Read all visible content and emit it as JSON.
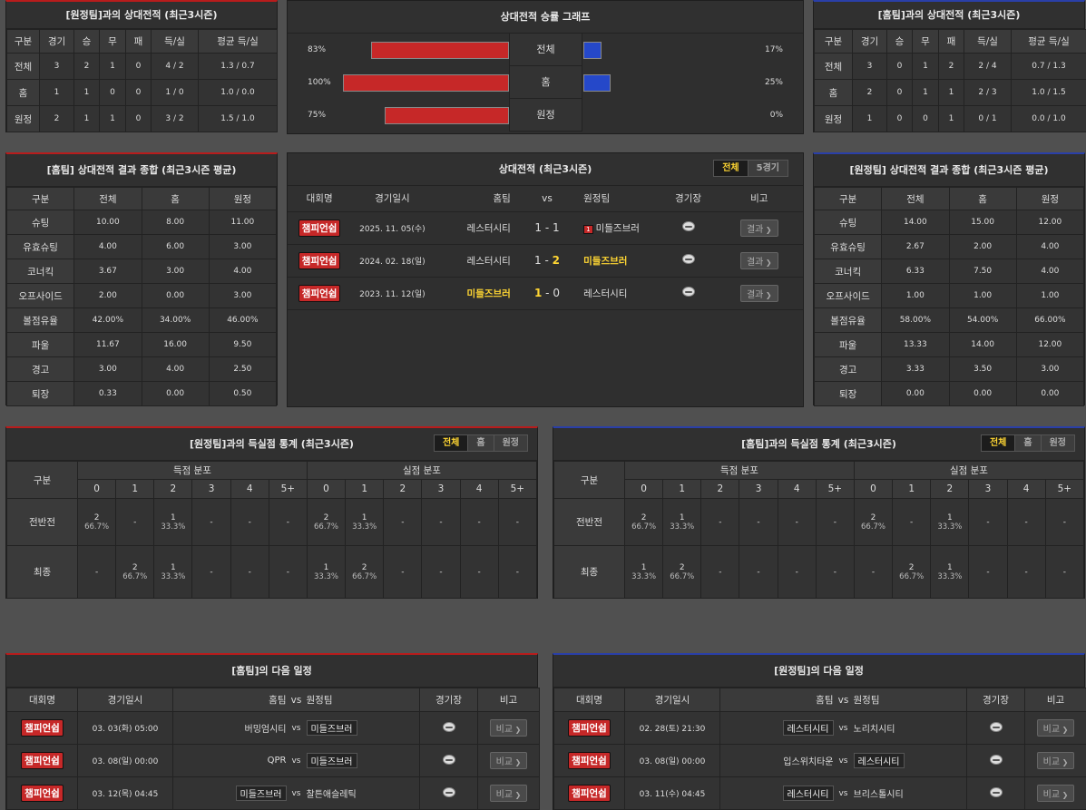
{
  "away_h2h": {
    "title": "[원정팀]과의 상대전적 (최근3시즌)",
    "headers": [
      "구분",
      "경기",
      "승",
      "무",
      "패",
      "득/실",
      "평균 득/실"
    ],
    "rows": [
      [
        "전체",
        "3",
        "2",
        "1",
        "0",
        "4 / 2",
        "1.3 / 0.7"
      ],
      [
        "홈",
        "1",
        "1",
        "0",
        "0",
        "1 / 0",
        "1.0 / 0.0"
      ],
      [
        "원정",
        "2",
        "1",
        "1",
        "0",
        "3 / 2",
        "1.5 / 1.0"
      ]
    ]
  },
  "win_graph": {
    "title": "상대전적 승률 그래프",
    "rows": [
      {
        "label": "전체",
        "left_text": "83%",
        "right_text": "17%",
        "left": 83,
        "right": 17
      },
      {
        "label": "홈",
        "left_text": "100%",
        "right_text": "25%",
        "left": 100,
        "right": 25
      },
      {
        "label": "원정",
        "left_text": "75%",
        "right_text": "0%",
        "left": 75,
        "right": 0
      }
    ]
  },
  "home_h2h": {
    "title": "[홈팀]과의 상대전적 (최근3시즌)",
    "headers": [
      "구분",
      "경기",
      "승",
      "무",
      "패",
      "득/실",
      "평균 득/실"
    ],
    "rows": [
      [
        "전체",
        "3",
        "0",
        "1",
        "2",
        "2 / 4",
        "0.7 / 1.3"
      ],
      [
        "홈",
        "2",
        "0",
        "1",
        "1",
        "2 / 3",
        "1.0 / 1.5"
      ],
      [
        "원정",
        "1",
        "0",
        "0",
        "1",
        "0 / 1",
        "0.0 / 1.0"
      ]
    ]
  },
  "home_summary": {
    "title": "[홈팀] 상대전적 결과 종합 (최근3시즌 평균)",
    "headers": [
      "구분",
      "전체",
      "홈",
      "원정"
    ],
    "rows": [
      [
        "슈팅",
        "10.00",
        "8.00",
        "11.00"
      ],
      [
        "유효슈팅",
        "4.00",
        "6.00",
        "3.00"
      ],
      [
        "코너킥",
        "3.67",
        "3.00",
        "4.00"
      ],
      [
        "오프사이드",
        "2.00",
        "0.00",
        "3.00"
      ],
      [
        "볼점유율",
        "42.00%",
        "34.00%",
        "46.00%"
      ],
      [
        "파울",
        "11.67",
        "16.00",
        "9.50"
      ],
      [
        "경고",
        "3.00",
        "4.00",
        "2.50"
      ],
      [
        "퇴장",
        "0.33",
        "0.00",
        "0.50"
      ]
    ]
  },
  "h2h_matches": {
    "title": "상대전적 (최근3시즌)",
    "tabs": [
      "전체",
      "5경기"
    ],
    "headers": {
      "league": "대회명",
      "date": "경기일시",
      "home": "홈팀",
      "vs": "vs",
      "away": "원정팀",
      "venue": "경기장",
      "note": "비고"
    },
    "rows": [
      {
        "league": "챔피언쉽",
        "date": "2025. 11. 05(수)",
        "home": "레스터시티",
        "hs": "1",
        "as": "1",
        "away": "미들즈브러",
        "card": "1",
        "winner": "none",
        "btn": "결과"
      },
      {
        "league": "챔피언쉽",
        "date": "2024. 02. 18(일)",
        "home": "레스터시티",
        "hs": "1",
        "as": "2",
        "away": "미들즈브러",
        "card": "",
        "winner": "away",
        "btn": "결과"
      },
      {
        "league": "챔피언쉽",
        "date": "2023. 11. 12(일)",
        "home": "미들즈브러",
        "hs": "1",
        "as": "0",
        "away": "레스터시티",
        "card": "",
        "winner": "home",
        "btn": "결과"
      }
    ]
  },
  "away_summary": {
    "title": "[원정팀] 상대전적 결과 종합 (최근3시즌 평균)",
    "headers": [
      "구분",
      "전체",
      "홈",
      "원정"
    ],
    "rows": [
      [
        "슈팅",
        "14.00",
        "15.00",
        "12.00"
      ],
      [
        "유효슈팅",
        "2.67",
        "2.00",
        "4.00"
      ],
      [
        "코너킥",
        "6.33",
        "7.50",
        "4.00"
      ],
      [
        "오프사이드",
        "1.00",
        "1.00",
        "1.00"
      ],
      [
        "볼점유율",
        "58.00%",
        "54.00%",
        "66.00%"
      ],
      [
        "파울",
        "13.33",
        "14.00",
        "12.00"
      ],
      [
        "경고",
        "3.33",
        "3.50",
        "3.00"
      ],
      [
        "퇴장",
        "0.00",
        "0.00",
        "0.00"
      ]
    ]
  },
  "away_goal_stats": {
    "title": "[원정팀]과의 득실점 통계 (최근3시즌)",
    "tabs": [
      "전체",
      "홈",
      "원정"
    ],
    "col_label": "구분",
    "scored_label": "득점 분포",
    "conceded_label": "실점 분포",
    "buckets": [
      "0",
      "1",
      "2",
      "3",
      "4",
      "5+"
    ],
    "rows": [
      {
        "label": "전반전",
        "scored": [
          [
            "2",
            "66.7%"
          ],
          [
            "-",
            ""
          ],
          [
            "1",
            "33.3%"
          ],
          [
            "-",
            ""
          ],
          [
            "-",
            ""
          ],
          [
            "-",
            ""
          ]
        ],
        "conceded": [
          [
            "2",
            "66.7%"
          ],
          [
            "1",
            "33.3%"
          ],
          [
            "-",
            ""
          ],
          [
            "-",
            ""
          ],
          [
            "-",
            ""
          ],
          [
            "-",
            ""
          ]
        ]
      },
      {
        "label": "최종",
        "scored": [
          [
            "-",
            ""
          ],
          [
            "2",
            "66.7%"
          ],
          [
            "1",
            "33.3%"
          ],
          [
            "-",
            ""
          ],
          [
            "-",
            ""
          ],
          [
            "-",
            ""
          ]
        ],
        "conceded": [
          [
            "1",
            "33.3%"
          ],
          [
            "2",
            "66.7%"
          ],
          [
            "-",
            ""
          ],
          [
            "-",
            ""
          ],
          [
            "-",
            ""
          ],
          [
            "-",
            ""
          ]
        ]
      }
    ]
  },
  "home_goal_stats": {
    "title": "[홈팀]과의 득실점 통계 (최근3시즌)",
    "tabs": [
      "전체",
      "홈",
      "원정"
    ],
    "col_label": "구분",
    "scored_label": "득점 분포",
    "conceded_label": "실점 분포",
    "buckets": [
      "0",
      "1",
      "2",
      "3",
      "4",
      "5+"
    ],
    "rows": [
      {
        "label": "전반전",
        "scored": [
          [
            "2",
            "66.7%"
          ],
          [
            "1",
            "33.3%"
          ],
          [
            "-",
            ""
          ],
          [
            "-",
            ""
          ],
          [
            "-",
            ""
          ],
          [
            "-",
            ""
          ]
        ],
        "conceded": [
          [
            "2",
            "66.7%"
          ],
          [
            "-",
            ""
          ],
          [
            "1",
            "33.3%"
          ],
          [
            "-",
            ""
          ],
          [
            "-",
            ""
          ],
          [
            "-",
            ""
          ]
        ]
      },
      {
        "label": "최종",
        "scored": [
          [
            "1",
            "33.3%"
          ],
          [
            "2",
            "66.7%"
          ],
          [
            "-",
            ""
          ],
          [
            "-",
            ""
          ],
          [
            "-",
            ""
          ],
          [
            "-",
            ""
          ]
        ],
        "conceded": [
          [
            "-",
            ""
          ],
          [
            "2",
            "66.7%"
          ],
          [
            "1",
            "33.3%"
          ],
          [
            "-",
            ""
          ],
          [
            "-",
            ""
          ],
          [
            "-",
            ""
          ]
        ]
      }
    ]
  },
  "home_next": {
    "title": "[홈팀]의 다음 일정",
    "headers": {
      "league": "대회명",
      "date": "경기일시",
      "home": "홈팀",
      "vs": "vs",
      "away": "원정팀",
      "venue": "경기장",
      "note": "비고"
    },
    "rows": [
      {
        "league": "챔피언쉽",
        "date": "03. 03(화) 05:00",
        "home": "버밍엄시티",
        "away": "미들즈브러",
        "boxed": "away",
        "btn": "비교"
      },
      {
        "league": "챔피언쉽",
        "date": "03. 08(일) 00:00",
        "home": "QPR",
        "away": "미들즈브러",
        "boxed": "away",
        "btn": "비교"
      },
      {
        "league": "챔피언쉽",
        "date": "03. 12(목) 04:45",
        "home": "미들즈브러",
        "away": "찰튼애슬레틱",
        "boxed": "home",
        "btn": "비교"
      }
    ]
  },
  "away_next": {
    "title": "[원정팀]의 다음 일정",
    "headers": {
      "league": "대회명",
      "date": "경기일시",
      "home": "홈팀",
      "vs": "vs",
      "away": "원정팀",
      "venue": "경기장",
      "note": "비고"
    },
    "rows": [
      {
        "league": "챔피언쉽",
        "date": "02. 28(토) 21:30",
        "home": "레스터시티",
        "away": "노리치시티",
        "boxed": "home",
        "btn": "비교"
      },
      {
        "league": "챔피언쉽",
        "date": "03. 08(일) 00:00",
        "home": "입스위치타운",
        "away": "레스터시티",
        "boxed": "away",
        "btn": "비교"
      },
      {
        "league": "챔피언쉽",
        "date": "03. 11(수) 04:45",
        "home": "레스터시티",
        "away": "브리스톨시티",
        "boxed": "home",
        "btn": "비교"
      }
    ]
  },
  "colors": {
    "home_bar": "#c62828",
    "away_bar": "#2548c9",
    "highlight": "#ffd633"
  }
}
